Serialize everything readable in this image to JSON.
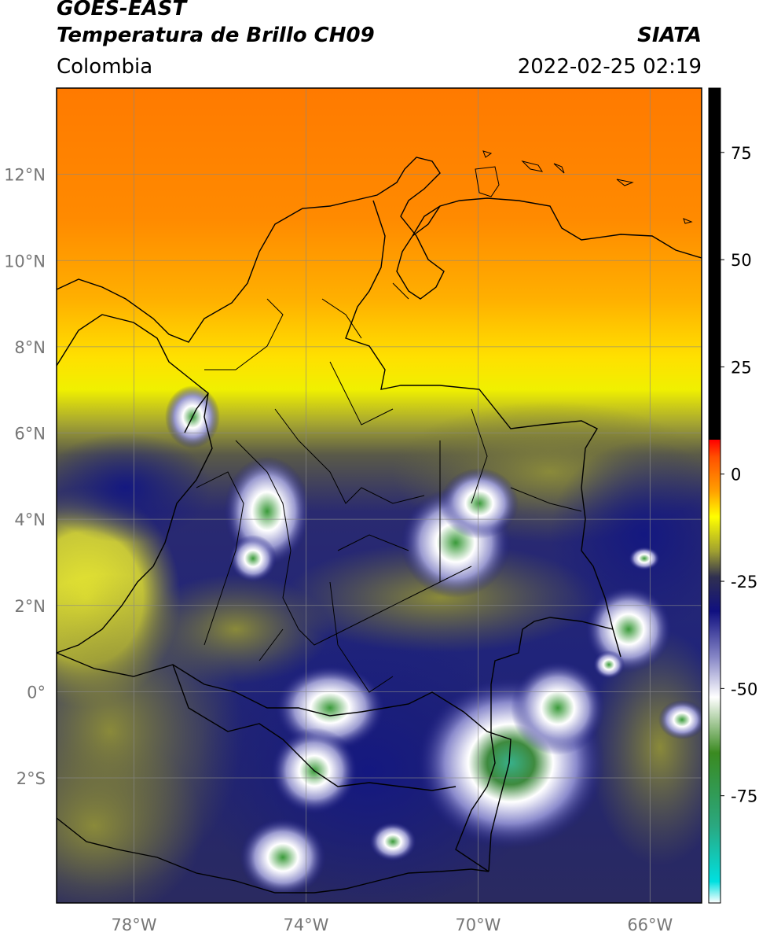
{
  "header": {
    "satellite": "GOES-EAST",
    "product": "Temperatura de Brillo CH09",
    "region": "Colombia",
    "agency": "SIATA",
    "datetime": "2022-02-25 02:19"
  },
  "map": {
    "lon_range": [
      -79.8,
      -64.8
    ],
    "lat_range": [
      -4.9,
      14.0
    ],
    "lat_ticks": [
      {
        "value": 12,
        "label": "12°N"
      },
      {
        "value": 10,
        "label": "10°N"
      },
      {
        "value": 8,
        "label": "8°N"
      },
      {
        "value": 6,
        "label": "6°N"
      },
      {
        "value": 4,
        "label": "4°N"
      },
      {
        "value": 2,
        "label": "2°N"
      },
      {
        "value": 0,
        "label": "0°"
      },
      {
        "value": -2,
        "label": "2°S"
      }
    ],
    "lon_ticks": [
      {
        "value": -78,
        "label": "78°W"
      },
      {
        "value": -74,
        "label": "74°W"
      },
      {
        "value": -70,
        "label": "70°W"
      },
      {
        "value": -66,
        "label": "66°W"
      }
    ],
    "gridlines": true
  },
  "colorbar": {
    "unit": "",
    "range": [
      -100,
      90
    ],
    "ticks": [
      {
        "value": 75,
        "label": "75"
      },
      {
        "value": 50,
        "label": "50"
      },
      {
        "value": 25,
        "label": "25"
      },
      {
        "value": 0,
        "label": "0"
      },
      {
        "value": -25,
        "label": "-25"
      },
      {
        "value": -50,
        "label": "-50"
      },
      {
        "value": -75,
        "label": "-75"
      }
    ],
    "stops": [
      {
        "value": -100,
        "color": "#ffffff"
      },
      {
        "value": -95,
        "color": "#00e0e0"
      },
      {
        "value": -82,
        "color": "#2aa880"
      },
      {
        "value": -65,
        "color": "#3a8a20"
      },
      {
        "value": -52,
        "color": "#ffffff"
      },
      {
        "value": -43,
        "color": "#8a8ac8"
      },
      {
        "value": -32,
        "color": "#101080"
      },
      {
        "value": -24,
        "color": "#303050"
      },
      {
        "value": -18,
        "color": "#a0a030"
      },
      {
        "value": -10,
        "color": "#ffff00"
      },
      {
        "value": -4,
        "color": "#ffa000"
      },
      {
        "value": 4,
        "color": "#ff5000"
      },
      {
        "value": 8,
        "color": "#ff0000"
      },
      {
        "value": 8.01,
        "color": "#000000"
      },
      {
        "value": 90,
        "color": "#000000"
      }
    ]
  },
  "colors": {
    "warm_band": "#ff8000",
    "yellow_band": "#f4f000",
    "olive": "#6e6e3a",
    "cold_blue": "#141880",
    "white_cloud": "#ffffff",
    "green_core": "#4a9a40"
  }
}
